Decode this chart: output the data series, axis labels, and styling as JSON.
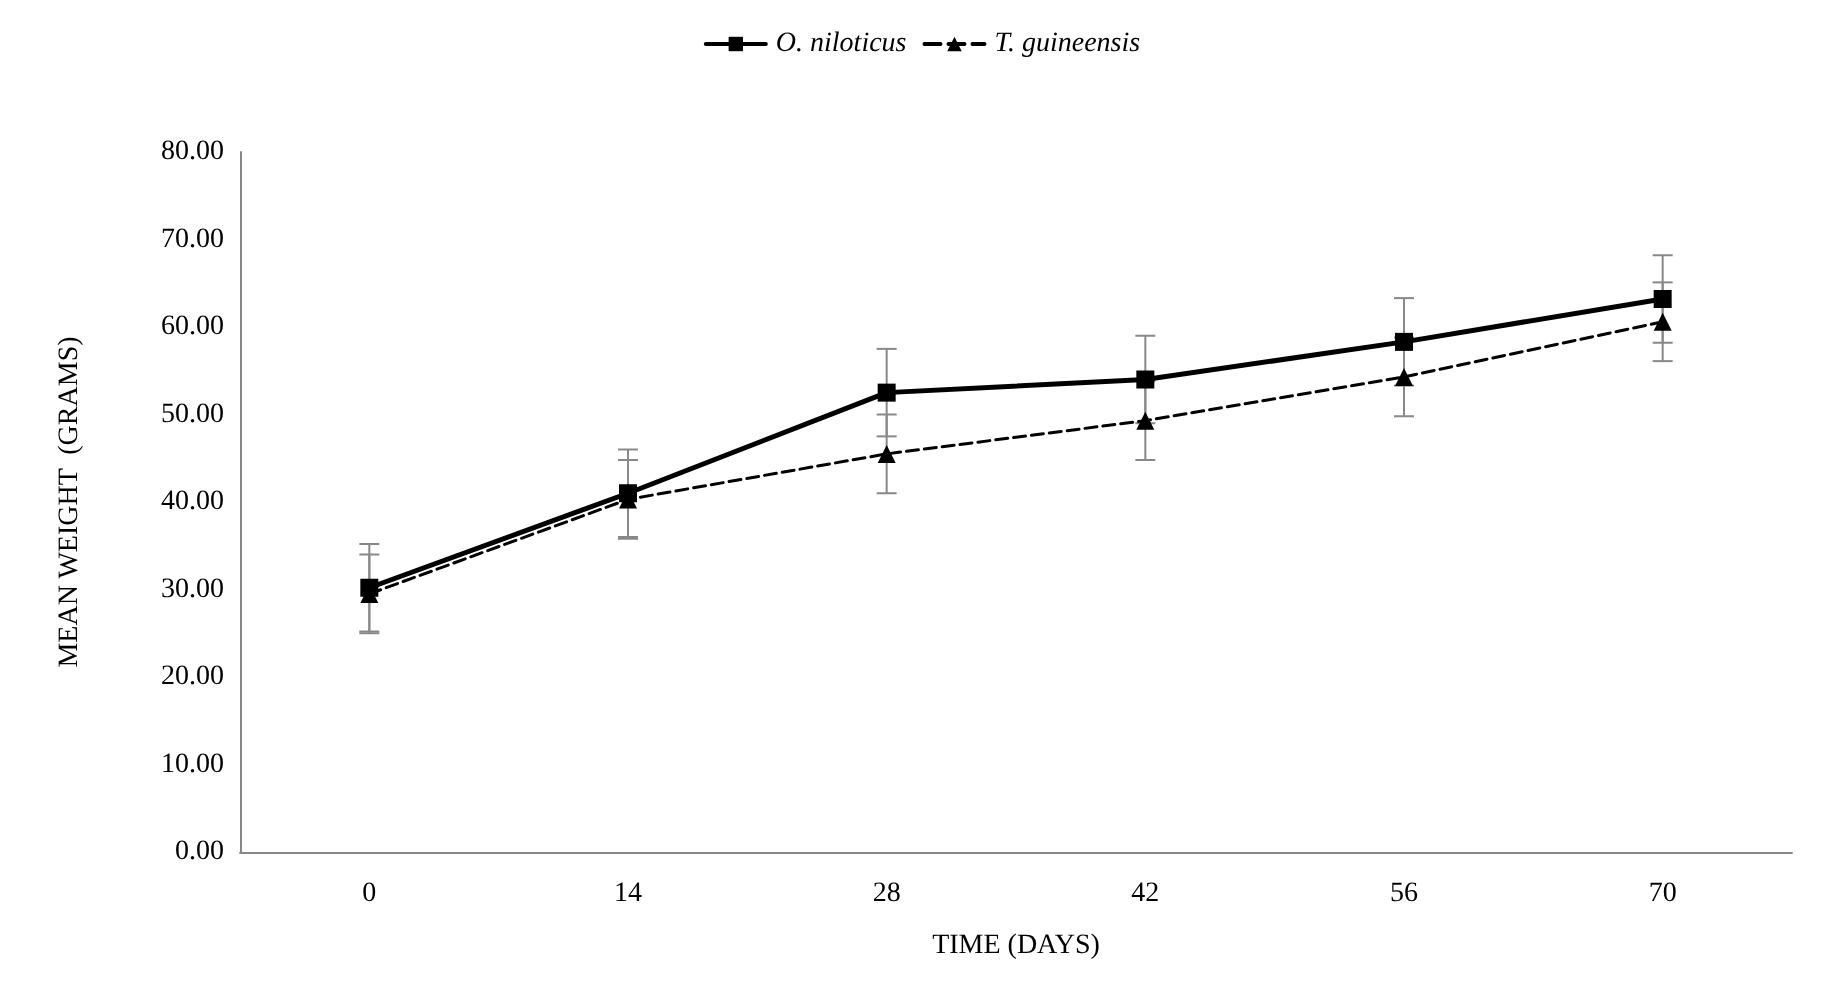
{
  "chart_data": {
    "type": "line",
    "xlabel": "TIME (DAYS)",
    "ylabel": "MEAN WEIGHT  (GRAMS)",
    "categories": [
      "0",
      "14",
      "28",
      "42",
      "56",
      "70"
    ],
    "series": [
      {
        "name": "O. niloticus",
        "color": "#000000",
        "marker": "square",
        "line_style": "solid",
        "values": [
          30.2,
          41.0,
          52.5,
          54.0,
          58.3,
          63.2
        ],
        "errors": [
          5,
          5,
          5,
          5,
          5,
          5
        ]
      },
      {
        "name": "T. guineensis",
        "color": "#000000",
        "marker": "triangle",
        "line_style": "dashed",
        "values": [
          29.5,
          40.3,
          45.5,
          49.3,
          54.3,
          60.6
        ],
        "errors": [
          4.5,
          4.5,
          4.5,
          4.5,
          4.5,
          4.5
        ]
      }
    ],
    "ylim": [
      0,
      80
    ],
    "yticks": [
      {
        "value": 0,
        "label": "0.00"
      },
      {
        "value": 10,
        "label": "10.00"
      },
      {
        "value": 20,
        "label": "20.00"
      },
      {
        "value": 30,
        "label": "30.00"
      },
      {
        "value": 40,
        "label": "40.00"
      },
      {
        "value": 50,
        "label": "50.00"
      },
      {
        "value": 60,
        "label": "60.00"
      },
      {
        "value": 70,
        "label": "70.00"
      },
      {
        "value": 80,
        "label": "80.00"
      }
    ],
    "grid": false,
    "legend": "top"
  }
}
